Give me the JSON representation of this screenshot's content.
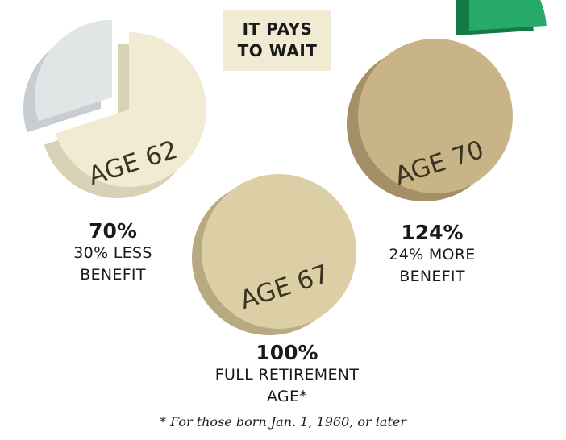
{
  "title": {
    "line1": "IT PAYS",
    "line2": "TO WAIT"
  },
  "footnote": "* For those born Jan. 1, 1960, or later",
  "colors": {
    "age62": "#f1ebd4",
    "age62_side": "#d9d1b5",
    "age62_missing": "#e2e5e6",
    "age62_missing_side": "#c7cdd0",
    "age67": "#dccea5",
    "age67_side": "#b7aa83",
    "age70": "#c8b487",
    "age70_side": "#a39068",
    "extra": "#27a96a",
    "extra_side": "#157a46"
  },
  "chart_data": [
    {
      "type": "pie",
      "label": "AGE 62",
      "value_label": "70%",
      "description": [
        "30% LESS",
        "BENEFIT"
      ],
      "slices": [
        {
          "name": "benefit",
          "value": 70
        },
        {
          "name": "reduction",
          "value": 30
        }
      ]
    },
    {
      "type": "pie",
      "label": "AGE 67",
      "value_label": "100%",
      "description": [
        "FULL RETIREMENT",
        "AGE*"
      ],
      "slices": [
        {
          "name": "benefit",
          "value": 100
        }
      ]
    },
    {
      "type": "pie",
      "label": "AGE 70",
      "value_label": "124%",
      "description": [
        "24% MORE",
        "BENEFIT"
      ],
      "slices": [
        {
          "name": "benefit",
          "value": 100
        },
        {
          "name": "extra",
          "value": 24
        }
      ]
    }
  ]
}
